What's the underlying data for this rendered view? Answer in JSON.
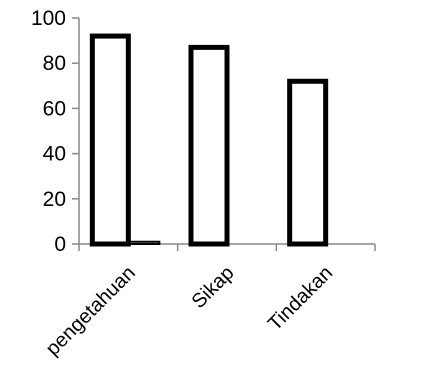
{
  "chart_data": {
    "type": "bar",
    "categories": [
      "pengetahuan",
      "Sikap",
      "Tindakan"
    ],
    "series": [
      {
        "values": [
          92,
          87,
          72
        ]
      },
      {
        "values": [
          1,
          0,
          0
        ]
      }
    ],
    "title": "",
    "xlabel": "",
    "ylabel": "",
    "ylim": [
      0,
      100
    ],
    "yticks": [
      "0",
      "20",
      "40",
      "60",
      "80",
      "100"
    ],
    "grid": false,
    "legend": "none",
    "bar_fill": "#ffffff",
    "bar_stroke": "#000000"
  }
}
